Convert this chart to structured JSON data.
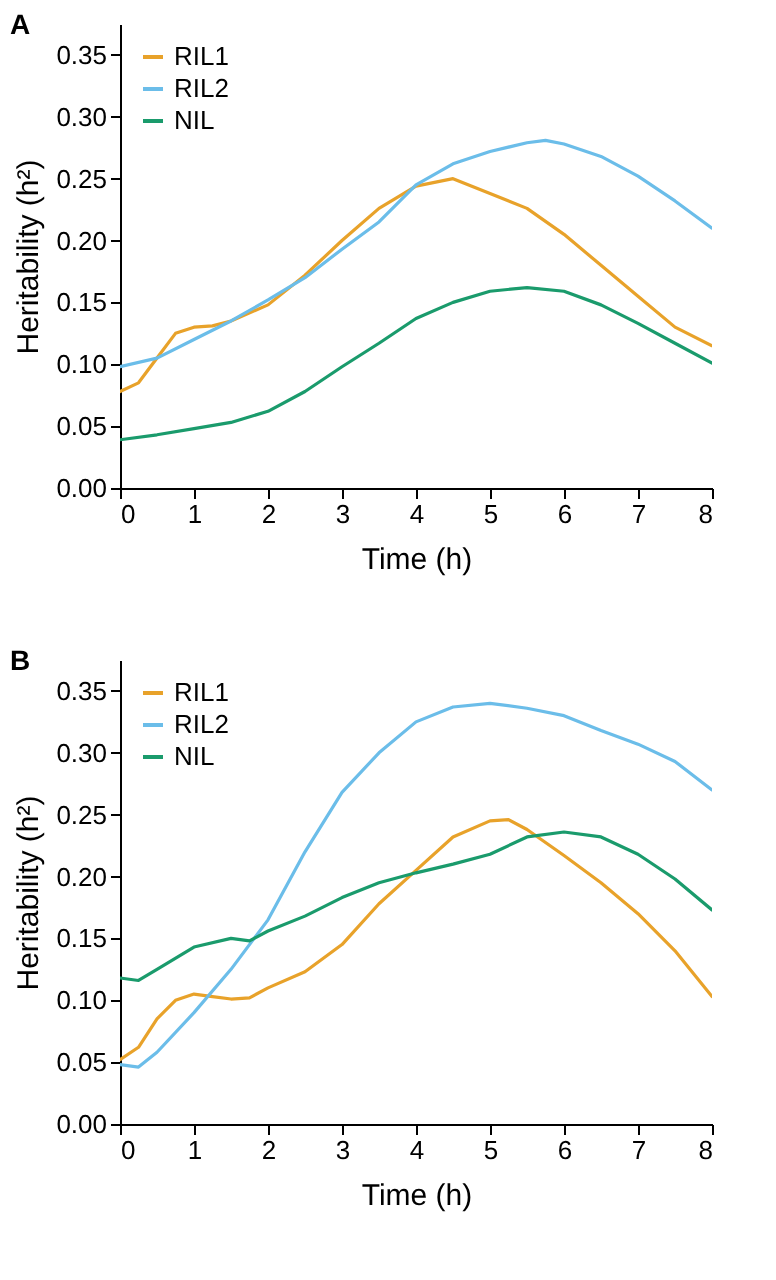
{
  "chart_data": [
    {
      "type": "line",
      "title": "A",
      "xlabel": "Time (h)",
      "ylabel": "Heritability (h²)",
      "xlim": [
        0,
        8
      ],
      "xticks": [
        0,
        1,
        2,
        3,
        4,
        5,
        6,
        7,
        8
      ],
      "ylim": [
        0,
        0.375
      ],
      "yticks": [
        {
          "value": 0,
          "label": "0.00"
        },
        {
          "value": 0.05,
          "label": "0.05"
        },
        {
          "value": 0.1,
          "label": "0.10"
        },
        {
          "value": 0.15,
          "label": "0.15"
        },
        {
          "value": 0.2,
          "label": "0.20"
        },
        {
          "value": 0.25,
          "label": "0.25"
        },
        {
          "value": 0.3,
          "label": "0.30"
        },
        {
          "value": 0.35,
          "label": "0.35"
        }
      ],
      "legend": "top left",
      "series": [
        {
          "name": "RIL1",
          "color": "#e8a22a",
          "x": [
            0,
            0.25,
            0.5,
            0.75,
            1,
            1.25,
            1.5,
            2,
            2.5,
            3,
            3.5,
            4,
            4.5,
            5,
            5.5,
            6,
            6.5,
            7,
            7.5,
            8
          ],
          "values": [
            0.078,
            0.085,
            0.105,
            0.125,
            0.13,
            0.131,
            0.135,
            0.148,
            0.172,
            0.2,
            0.226,
            0.244,
            0.25,
            0.238,
            0.226,
            0.205,
            0.18,
            0.155,
            0.13,
            0.115
          ]
        },
        {
          "name": "RIL2",
          "color": "#6bbde9",
          "x": [
            0,
            0.5,
            1,
            1.5,
            2,
            2.5,
            3,
            3.5,
            4,
            4.5,
            5,
            5.5,
            5.75,
            6,
            6.5,
            7,
            7.5,
            8
          ],
          "values": [
            0.098,
            0.105,
            0.12,
            0.135,
            0.152,
            0.17,
            0.193,
            0.215,
            0.245,
            0.262,
            0.272,
            0.279,
            0.281,
            0.278,
            0.268,
            0.252,
            0.232,
            0.21
          ]
        },
        {
          "name": "NIL",
          "color": "#1a9b6c",
          "x": [
            0,
            0.5,
            1,
            1.5,
            2,
            2.5,
            3,
            3.5,
            4,
            4.5,
            5,
            5.5,
            6,
            6.5,
            7,
            7.5,
            8
          ],
          "values": [
            0.039,
            0.043,
            0.048,
            0.053,
            0.062,
            0.078,
            0.098,
            0.117,
            0.137,
            0.15,
            0.159,
            0.162,
            0.159,
            0.148,
            0.133,
            0.117,
            0.101
          ]
        }
      ]
    },
    {
      "type": "line",
      "title": "B",
      "xlabel": "Time (h)",
      "ylabel": "Heritability (h²)",
      "xlim": [
        0,
        8
      ],
      "xticks": [
        0,
        1,
        2,
        3,
        4,
        5,
        6,
        7,
        8
      ],
      "ylim": [
        0,
        0.375
      ],
      "yticks": [
        {
          "value": 0,
          "label": "0.00"
        },
        {
          "value": 0.05,
          "label": "0.05"
        },
        {
          "value": 0.1,
          "label": "0.10"
        },
        {
          "value": 0.15,
          "label": "0.15"
        },
        {
          "value": 0.2,
          "label": "0.20"
        },
        {
          "value": 0.25,
          "label": "0.25"
        },
        {
          "value": 0.3,
          "label": "0.30"
        },
        {
          "value": 0.35,
          "label": "0.35"
        }
      ],
      "legend": "top left",
      "series": [
        {
          "name": "RIL1",
          "color": "#e8a22a",
          "x": [
            0,
            0.25,
            0.5,
            0.75,
            1,
            1.25,
            1.5,
            1.75,
            2,
            2.5,
            3,
            3.5,
            4,
            4.5,
            5,
            5.25,
            5.5,
            6,
            6.5,
            7,
            7.5,
            8
          ],
          "values": [
            0.052,
            0.062,
            0.085,
            0.1,
            0.105,
            0.103,
            0.101,
            0.102,
            0.11,
            0.123,
            0.145,
            0.178,
            0.205,
            0.232,
            0.245,
            0.246,
            0.238,
            0.217,
            0.195,
            0.17,
            0.14,
            0.103
          ]
        },
        {
          "name": "RIL2",
          "color": "#6bbde9",
          "x": [
            0,
            0.25,
            0.5,
            1,
            1.5,
            2,
            2.5,
            3,
            3.5,
            4,
            4.5,
            5,
            5.5,
            6,
            6.5,
            7,
            7.5,
            8
          ],
          "values": [
            0.048,
            0.046,
            0.058,
            0.09,
            0.125,
            0.165,
            0.22,
            0.268,
            0.3,
            0.325,
            0.337,
            0.34,
            0.336,
            0.33,
            0.318,
            0.307,
            0.293,
            0.27
          ]
        },
        {
          "name": "NIL",
          "color": "#1a9b6c",
          "x": [
            0,
            0.25,
            0.5,
            1,
            1.5,
            1.75,
            2,
            2.5,
            3,
            3.5,
            4,
            4.5,
            5,
            5.5,
            6,
            6.5,
            7,
            7.5,
            8
          ],
          "values": [
            0.118,
            0.116,
            0.125,
            0.143,
            0.15,
            0.148,
            0.156,
            0.168,
            0.183,
            0.195,
            0.203,
            0.21,
            0.218,
            0.232,
            0.236,
            0.232,
            0.218,
            0.198,
            0.173
          ]
        }
      ]
    }
  ]
}
